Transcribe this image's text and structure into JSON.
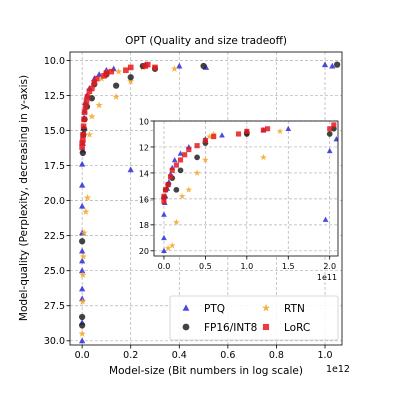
{
  "chart_data": {
    "type": "scatter",
    "title": "OPT (Quality and size tradeoff)",
    "xlabel": "Model-size (Bit numbers in log scale)",
    "ylabel": "Model-quality (Perplexity, decreasing in y-axis)",
    "x_offset_label": "1e12",
    "xlim": [
      -0.05,
      1.07
    ],
    "ylim": [
      30.3,
      9.4
    ],
    "y_inverted": true,
    "grid": true,
    "xticks": [
      0.0,
      0.2,
      0.4,
      0.6,
      0.8,
      1.0
    ],
    "xtick_labels": [
      "0.0",
      "0.2",
      "0.4",
      "0.6",
      "0.8",
      "1.0"
    ],
    "yticks": [
      10.0,
      12.5,
      15.0,
      17.5,
      20.0,
      22.5,
      25.0,
      27.5,
      30.0
    ],
    "ytick_labels": [
      "10.0",
      "12.5",
      "15.0",
      "17.5",
      "20.0",
      "22.5",
      "25.0",
      "27.5",
      "30.0"
    ],
    "legend_position": "lower-right",
    "series": [
      {
        "name": "PTQ",
        "marker": "triangle",
        "color": "#2b2bd9",
        "points": [
          [
            0.0,
            30.0
          ],
          [
            0.0,
            28.7
          ],
          [
            0.0,
            27.0
          ],
          [
            0.0,
            26.3
          ],
          [
            0.0,
            25.0
          ],
          [
            0.0,
            24.3
          ],
          [
            0.0,
            23.6
          ],
          [
            0.0,
            22.3
          ],
          [
            0.0,
            20.4
          ],
          [
            0.0,
            18.9
          ],
          [
            0.0,
            17.4
          ],
          [
            0.002,
            16.4
          ],
          [
            0.003,
            15.9
          ],
          [
            0.004,
            15.3
          ],
          [
            0.006,
            14.8
          ],
          [
            0.008,
            14.1
          ],
          [
            0.01,
            13.6
          ],
          [
            0.013,
            13.0
          ],
          [
            0.02,
            12.5
          ],
          [
            0.03,
            12.0
          ],
          [
            0.05,
            11.3
          ],
          [
            0.07,
            11.0
          ],
          [
            0.1,
            10.7
          ],
          [
            0.13,
            10.6
          ],
          [
            0.2,
            17.8
          ],
          [
            0.26,
            10.3
          ],
          [
            0.4,
            10.4
          ],
          [
            0.51,
            10.5
          ],
          [
            1.0,
            10.3
          ],
          [
            1.03,
            10.4
          ]
        ]
      },
      {
        "name": "RTN",
        "marker": "star",
        "color": "#f5a623",
        "points": [
          [
            0.0,
            29.5
          ],
          [
            0.002,
            27.2
          ],
          [
            0.003,
            25.3
          ],
          [
            0.005,
            24.0
          ],
          [
            0.008,
            22.3
          ],
          [
            0.015,
            20.8
          ],
          [
            0.022,
            19.8
          ],
          [
            0.03,
            15.3
          ],
          [
            0.04,
            14.0
          ],
          [
            0.07,
            13.2
          ],
          [
            0.08,
            11.3
          ],
          [
            0.1,
            10.9
          ],
          [
            0.14,
            12.6
          ],
          [
            0.15,
            10.8
          ],
          [
            0.2,
            11.5
          ],
          [
            0.25,
            10.5
          ],
          [
            0.38,
            10.6
          ]
        ]
      },
      {
        "name": "FP16/INT8",
        "marker": "circle",
        "color": "#222222",
        "points": [
          [
            0.0,
            28.9
          ],
          [
            0.0,
            28.3
          ],
          [
            0.0,
            22.9
          ],
          [
            0.003,
            16.6
          ],
          [
            0.005,
            15.3
          ],
          [
            0.008,
            14.9
          ],
          [
            0.01,
            14.2
          ],
          [
            0.02,
            13.3
          ],
          [
            0.04,
            12.7
          ],
          [
            0.05,
            11.7
          ],
          [
            0.1,
            11.0
          ],
          [
            0.14,
            11.8
          ],
          [
            0.2,
            11.2
          ],
          [
            0.25,
            10.4
          ],
          [
            0.3,
            10.6
          ],
          [
            0.5,
            10.4
          ],
          [
            1.05,
            10.3
          ]
        ]
      },
      {
        "name": "LoRC",
        "marker": "square",
        "color": "#e41a1c",
        "points": [
          [
            0.0,
            16.2
          ],
          [
            0.0,
            15.9
          ],
          [
            0.003,
            15.7
          ],
          [
            0.004,
            15.3
          ],
          [
            0.006,
            14.7
          ],
          [
            0.008,
            14.2
          ],
          [
            0.01,
            13.7
          ],
          [
            0.014,
            13.3
          ],
          [
            0.018,
            12.9
          ],
          [
            0.022,
            12.6
          ],
          [
            0.03,
            12.2
          ],
          [
            0.04,
            12.0
          ],
          [
            0.05,
            11.6
          ],
          [
            0.06,
            11.3
          ],
          [
            0.09,
            11.1
          ],
          [
            0.1,
            10.9
          ],
          [
            0.12,
            10.8
          ],
          [
            0.18,
            10.7
          ],
          [
            0.2,
            10.5
          ],
          [
            0.26,
            10.4
          ],
          [
            0.27,
            10.3
          ],
          [
            0.3,
            10.5
          ]
        ]
      }
    ],
    "inset": {
      "x_offset_label": "1e11",
      "xlim": [
        -0.12,
        2.1
      ],
      "ylim": [
        20.4,
        10.0
      ],
      "xticks": [
        0.0,
        0.5,
        1.0,
        1.5,
        2.0
      ],
      "xtick_labels": [
        "0.0",
        "0.5",
        "1.0",
        "1.5",
        "2.0"
      ],
      "yticks": [
        10,
        12,
        14,
        16,
        18,
        20
      ],
      "ytick_labels": [
        "10",
        "12",
        "14",
        "16",
        "18",
        "20"
      ],
      "series": [
        {
          "name": "PTQ",
          "points": [
            [
              0.0,
              20.0
            ],
            [
              0.0,
              19.0
            ],
            [
              0.0,
              17.2
            ],
            [
              0.01,
              16.3
            ],
            [
              0.02,
              15.8
            ],
            [
              0.04,
              15.2
            ],
            [
              0.06,
              14.7
            ],
            [
              0.08,
              14.1
            ],
            [
              0.1,
              13.6
            ],
            [
              0.13,
              13.0
            ],
            [
              0.2,
              12.5
            ],
            [
              0.3,
              12.0
            ],
            [
              0.5,
              11.4
            ],
            [
              0.7,
              11.1
            ],
            [
              1.0,
              10.8
            ],
            [
              1.2,
              10.7
            ],
            [
              1.5,
              10.6
            ],
            [
              1.95,
              17.6
            ],
            [
              2.0,
              12.3
            ],
            [
              2.08,
              11.4
            ]
          ]
        },
        {
          "name": "RTN",
          "points": [
            [
              0.05,
              19.8
            ],
            [
              0.1,
              19.6
            ],
            [
              0.15,
              17.8
            ],
            [
              0.22,
              15.8
            ],
            [
              0.3,
              15.3
            ],
            [
              0.4,
              14.0
            ],
            [
              0.5,
              13.0
            ],
            [
              0.55,
              11.2
            ],
            [
              0.6,
              11.0
            ],
            [
              1.0,
              11.0
            ],
            [
              1.2,
              12.8
            ],
            [
              1.4,
              10.8
            ]
          ]
        },
        {
          "name": "FP16/INT8",
          "points": [
            [
              0.0,
              15.9
            ],
            [
              0.02,
              15.3
            ],
            [
              0.05,
              14.9
            ],
            [
              0.1,
              14.4
            ],
            [
              0.15,
              15.3
            ],
            [
              0.2,
              13.8
            ],
            [
              0.4,
              12.8
            ],
            [
              0.5,
              11.7
            ],
            [
              1.0,
              11.0
            ],
            [
              1.0,
              10.9
            ],
            [
              2.0,
              11.0
            ],
            [
              2.05,
              10.6
            ]
          ]
        },
        {
          "name": "LoRC",
          "points": [
            [
              0.0,
              16.2
            ],
            [
              0.0,
              15.8
            ],
            [
              0.02,
              15.3
            ],
            [
              0.05,
              14.9
            ],
            [
              0.08,
              14.3
            ],
            [
              0.1,
              13.8
            ],
            [
              0.15,
              13.4
            ],
            [
              0.2,
              13.0
            ],
            [
              0.25,
              12.6
            ],
            [
              0.3,
              12.2
            ],
            [
              0.4,
              11.9
            ],
            [
              0.5,
              11.5
            ],
            [
              0.6,
              11.2
            ],
            [
              0.9,
              11.0
            ],
            [
              1.0,
              10.8
            ],
            [
              1.2,
              10.7
            ],
            [
              1.25,
              10.6
            ],
            [
              2.0,
              10.6
            ],
            [
              2.05,
              10.3
            ]
          ]
        }
      ]
    }
  }
}
